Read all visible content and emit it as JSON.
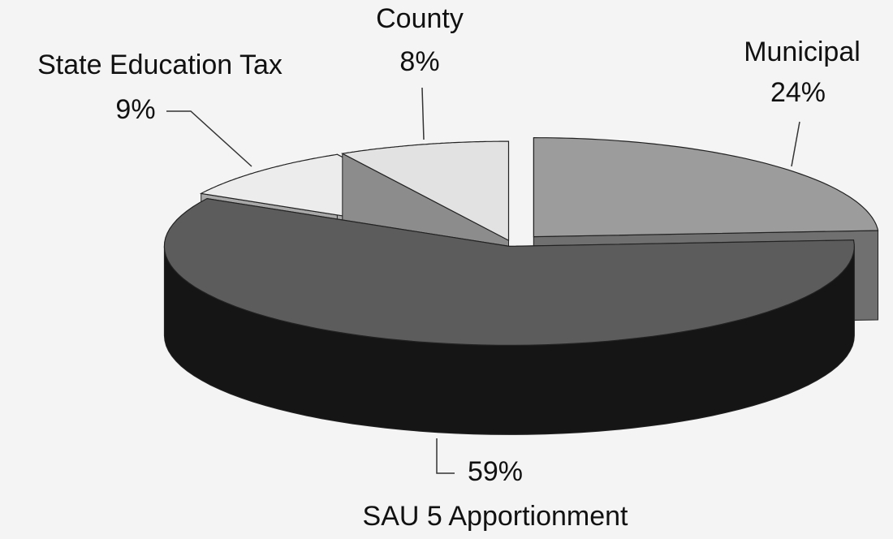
{
  "chart_data": {
    "type": "pie3d",
    "categories": [
      "Municipal",
      "SAU 5 Apportionment",
      "State Education Tax",
      "County"
    ],
    "values": [
      24,
      59,
      9,
      8
    ],
    "value_labels": [
      "24%",
      "59%",
      "9%",
      "8%"
    ],
    "colors": [
      "#9c9c9c",
      "#5c5c5c",
      "#ececec",
      "#e2e2e2"
    ],
    "side_colors": [
      "#707070",
      "#151515",
      "#a8a8a8",
      "#8c8c8c"
    ]
  }
}
